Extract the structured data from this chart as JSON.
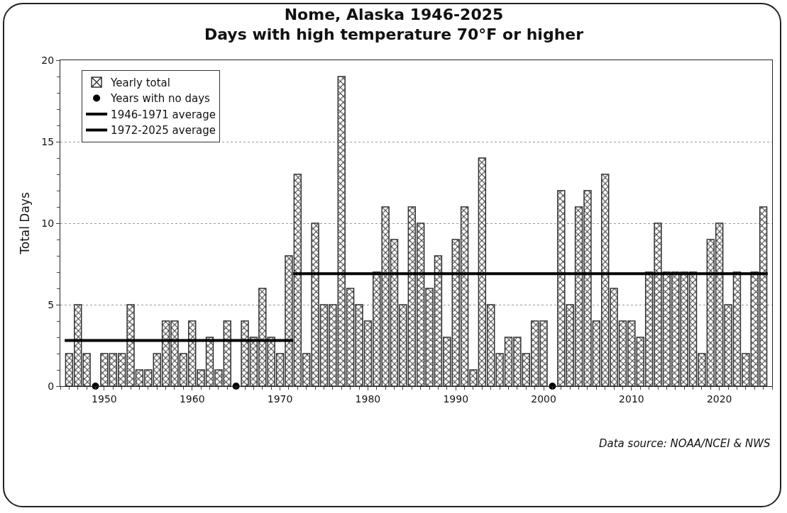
{
  "chart_data": {
    "type": "bar",
    "title": "Nome, Alaska 1946-2025\nDays with high temperature 70°F or higher",
    "ylabel": "Total Days",
    "x": [
      1946,
      1947,
      1948,
      1949,
      1950,
      1951,
      1952,
      1953,
      1954,
      1955,
      1956,
      1957,
      1958,
      1959,
      1960,
      1961,
      1962,
      1963,
      1964,
      1965,
      1966,
      1967,
      1968,
      1969,
      1970,
      1971,
      1972,
      1973,
      1974,
      1975,
      1976,
      1977,
      1978,
      1979,
      1980,
      1981,
      1982,
      1983,
      1984,
      1985,
      1986,
      1987,
      1988,
      1989,
      1990,
      1991,
      1992,
      1993,
      1994,
      1995,
      1996,
      1997,
      1998,
      1999,
      2000,
      2001,
      2002,
      2003,
      2004,
      2005,
      2006,
      2007,
      2008,
      2009,
      2010,
      2011,
      2012,
      2013,
      2014,
      2015,
      2016,
      2017,
      2018,
      2019,
      2020,
      2021,
      2022,
      2023,
      2024,
      2025
    ],
    "series": [
      {
        "name": "Yearly total",
        "color": "#333333",
        "values": [
          2,
          5,
          2,
          0,
          2,
          2,
          2,
          5,
          1,
          1,
          2,
          4,
          4,
          2,
          4,
          1,
          3,
          1,
          4,
          0,
          4,
          3,
          6,
          3,
          2,
          8,
          13,
          2,
          10,
          5,
          5,
          19,
          6,
          5,
          4,
          7,
          11,
          9,
          5,
          11,
          10,
          6,
          8,
          3,
          9,
          11,
          1,
          14,
          5,
          2,
          3,
          3,
          2,
          4,
          4,
          0,
          12,
          5,
          11,
          12,
          4,
          13,
          6,
          4,
          4,
          3,
          7,
          10,
          7,
          7,
          7,
          7,
          2,
          9,
          10,
          5,
          7,
          2,
          7,
          11
        ]
      },
      {
        "name": "Years with no days",
        "type": "scatter",
        "marker": "circle",
        "color": "#000000",
        "x": [
          1949,
          1965,
          2001
        ],
        "values": [
          0,
          0,
          0
        ]
      },
      {
        "name": "1946-1971 average",
        "type": "line",
        "color": "#000000",
        "x": [
          1945.5,
          1971.5
        ],
        "values": [
          2.8,
          2.8
        ]
      },
      {
        "name": "1972-2025 average",
        "type": "line",
        "color": "#000000",
        "x": [
          1971.5,
          2025.5
        ],
        "values": [
          6.9,
          6.9
        ]
      }
    ],
    "xlim": [
      1945,
      2026
    ],
    "xticks": [
      1950,
      1960,
      1970,
      1980,
      1990,
      2000,
      2010,
      2020
    ],
    "ylim": [
      0,
      20
    ],
    "yticks": [
      0,
      5,
      10,
      15,
      20
    ],
    "grid": "y",
    "legend": "top left",
    "line_style": "solid",
    "annotations": [
      "Data source: NOAA/NCEI & NWS"
    ]
  }
}
